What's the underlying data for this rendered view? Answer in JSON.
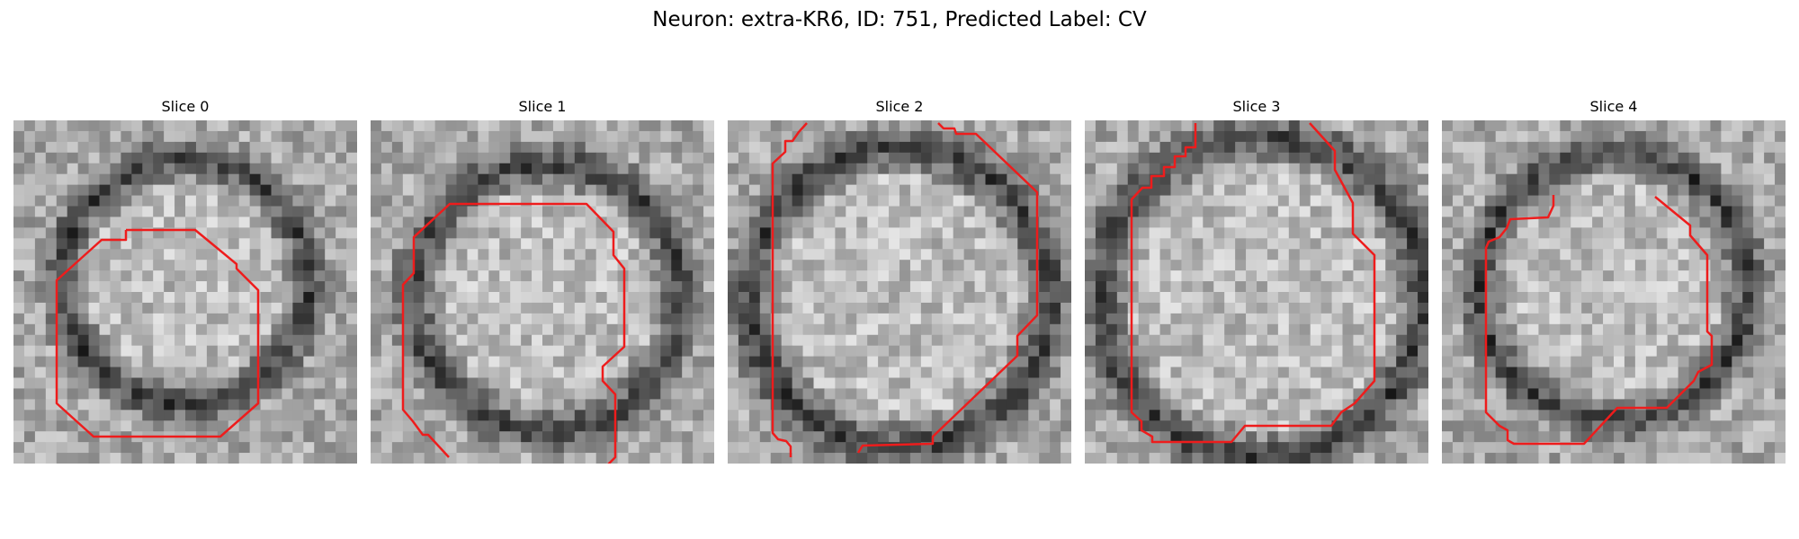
{
  "figure": {
    "title": "Neuron: extra-KR6, ID: 751, Predicted Label: CV"
  },
  "panels": [
    {
      "title": "Slice 0"
    },
    {
      "title": "Slice 1"
    },
    {
      "title": "Slice 2"
    },
    {
      "title": "Slice 3"
    },
    {
      "title": "Slice 4"
    }
  ],
  "colors": {
    "contour": "#ee1c1c",
    "colormap": "grayscale"
  }
}
